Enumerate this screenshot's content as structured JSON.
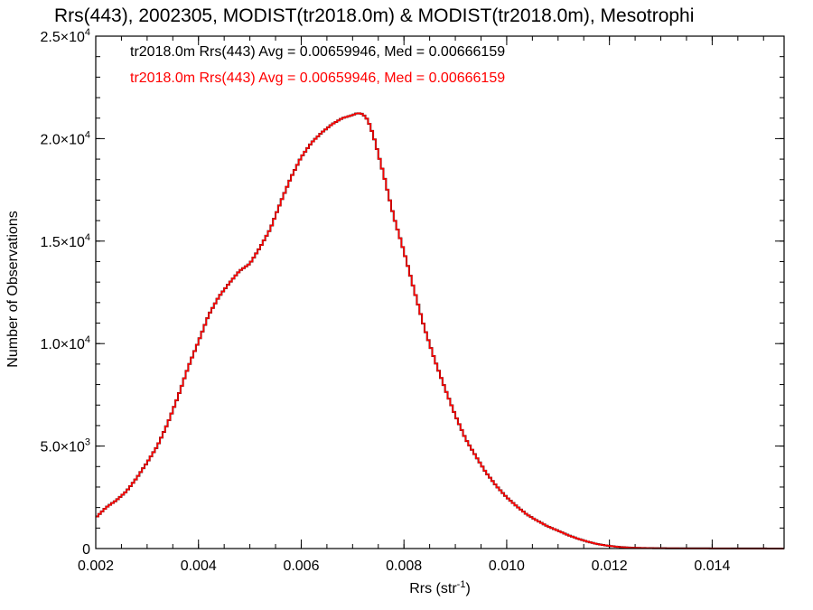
{
  "chart_data": {
    "type": "line",
    "title": "Rrs(443), 2002305, MODIST(tr2018.0m) & MODIST(tr2018.0m), Mesotrophi",
    "xlabel": "Rrs (str",
    "xlabel_sup": "-1",
    "xlabel_end": ")",
    "ylabel": "Number of Observations",
    "xlim": [
      0.002,
      0.0154
    ],
    "ylim": [
      0,
      25000
    ],
    "x_ticks": [
      0.002,
      0.004,
      0.006,
      0.008,
      0.01,
      0.012,
      0.014
    ],
    "x_tick_labels": [
      "0.002",
      "0.004",
      "0.006",
      "0.008",
      "0.010",
      "0.012",
      "0.014"
    ],
    "y_ticks": [
      {
        "value": 0,
        "mantissa": "0",
        "exp": ""
      },
      {
        "value": 5000,
        "mantissa": "5.0×10",
        "exp": "3"
      },
      {
        "value": 10000,
        "mantissa": "1.0×10",
        "exp": "4"
      },
      {
        "value": 15000,
        "mantissa": "1.5×10",
        "exp": "4"
      },
      {
        "value": 20000,
        "mantissa": "2.0×10",
        "exp": "4"
      },
      {
        "value": 25000,
        "mantissa": "2.5×10",
        "exp": "4"
      }
    ],
    "legend_placement": "top-left",
    "series": [
      {
        "name": "tr2018.0m Rrs(443) Avg = 0.00659946, Med = 0.00666159",
        "color": "#000000",
        "style": "step",
        "x": [
          0.002,
          0.0022,
          0.0024,
          0.0026,
          0.0028,
          0.003,
          0.0032,
          0.0034,
          0.0036,
          0.0038,
          0.004,
          0.0042,
          0.0044,
          0.0046,
          0.0048,
          0.005,
          0.0052,
          0.0054,
          0.0056,
          0.0058,
          0.006,
          0.0062,
          0.0064,
          0.0066,
          0.0068,
          0.007,
          0.0071,
          0.0072,
          0.0073,
          0.0074,
          0.0076,
          0.0078,
          0.008,
          0.0082,
          0.0084,
          0.0086,
          0.0088,
          0.009,
          0.0092,
          0.0094,
          0.0096,
          0.0098,
          0.01,
          0.0102,
          0.0104,
          0.0106,
          0.0108,
          0.011,
          0.0112,
          0.0114,
          0.0116,
          0.0118,
          0.012,
          0.0122,
          0.0124,
          0.0126,
          0.0128,
          0.013,
          0.0135,
          0.014,
          0.0145,
          0.015,
          0.0154
        ],
        "values": [
          1500,
          2000,
          2350,
          2800,
          3450,
          4200,
          5000,
          6100,
          7400,
          8850,
          10100,
          11400,
          12300,
          12950,
          13550,
          13900,
          14700,
          15600,
          16900,
          18100,
          19100,
          19800,
          20300,
          20700,
          21000,
          21150,
          21250,
          21200,
          20900,
          20200,
          18300,
          16200,
          14500,
          12600,
          10750,
          9200,
          7800,
          6500,
          5350,
          4500,
          3700,
          3050,
          2500,
          2050,
          1650,
          1350,
          1080,
          870,
          650,
          470,
          320,
          200,
          130,
          75,
          45,
          30,
          20,
          15,
          10,
          8,
          5,
          3,
          2
        ]
      },
      {
        "name": "tr2018.0m Rrs(443) Avg = 0.00659946, Med = 0.00666159",
        "color": "#ff0000",
        "style": "step",
        "x": [
          0.002,
          0.0022,
          0.0024,
          0.0026,
          0.0028,
          0.003,
          0.0032,
          0.0034,
          0.0036,
          0.0038,
          0.004,
          0.0042,
          0.0044,
          0.0046,
          0.0048,
          0.005,
          0.0052,
          0.0054,
          0.0056,
          0.0058,
          0.006,
          0.0062,
          0.0064,
          0.0066,
          0.0068,
          0.007,
          0.0071,
          0.0072,
          0.0073,
          0.0074,
          0.0076,
          0.0078,
          0.008,
          0.0082,
          0.0084,
          0.0086,
          0.0088,
          0.009,
          0.0092,
          0.0094,
          0.0096,
          0.0098,
          0.01,
          0.0102,
          0.0104,
          0.0106,
          0.0108,
          0.011,
          0.0112,
          0.0114,
          0.0116,
          0.0118,
          0.012,
          0.0122,
          0.0124,
          0.0126,
          0.0128,
          0.013,
          0.0135,
          0.014,
          0.0145,
          0.015,
          0.0154
        ],
        "values": [
          1500,
          2000,
          2350,
          2800,
          3450,
          4200,
          5000,
          6100,
          7400,
          8850,
          10100,
          11400,
          12300,
          12950,
          13550,
          13900,
          14700,
          15600,
          16900,
          18100,
          19100,
          19800,
          20300,
          20700,
          21000,
          21150,
          21250,
          21200,
          20900,
          20200,
          18300,
          16200,
          14500,
          12600,
          10750,
          9200,
          7800,
          6500,
          5350,
          4500,
          3700,
          3050,
          2500,
          2050,
          1650,
          1350,
          1080,
          870,
          650,
          470,
          320,
          200,
          130,
          75,
          45,
          30,
          20,
          15,
          10,
          8,
          5,
          3,
          2
        ]
      }
    ]
  }
}
